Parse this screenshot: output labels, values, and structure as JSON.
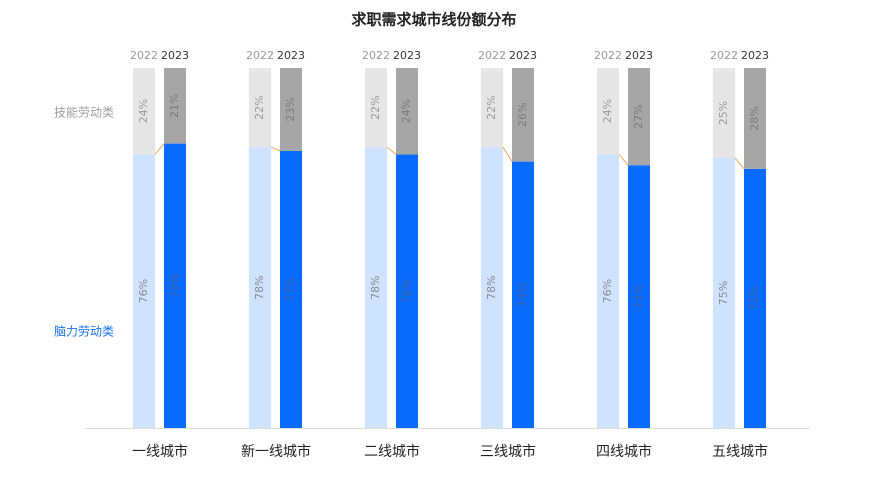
{
  "chart_data": {
    "type": "stacked-bar",
    "title": "求职需求城市线份额分布",
    "categories": [
      "一线城市",
      "新一线城市",
      "二线城市",
      "三线城市",
      "四线城市",
      "五线城市"
    ],
    "subcategories": [
      "2022",
      "2023"
    ],
    "ylim": [
      0,
      100
    ],
    "series": [
      {
        "name": "脑力劳动类",
        "color": "#1a73f0",
        "colors": [
          "#cfe2ff",
          "#0a6cff"
        ],
        "label_colors": [
          "#8a8a8a",
          "#3d5f99"
        ],
        "values": [
          [
            76,
            79
          ],
          [
            78,
            77
          ],
          [
            78,
            76
          ],
          [
            78,
            74
          ],
          [
            76,
            73
          ],
          [
            75,
            72
          ]
        ],
        "value_labels": [
          [
            "76%",
            "79%"
          ],
          [
            "78%",
            "77%"
          ],
          [
            "78%",
            "76%"
          ],
          [
            "78%",
            "74%"
          ],
          [
            "76%",
            "73%"
          ],
          [
            "75%",
            "72%"
          ]
        ]
      },
      {
        "name": "技能劳动类",
        "color": "#9e9e9e",
        "colors": [
          "#e6e6e6",
          "#a6a6a6"
        ],
        "label_colors": [
          "#9a9a9a",
          "#7a7a7a"
        ],
        "values": [
          [
            24,
            21
          ],
          [
            22,
            23
          ],
          [
            22,
            24
          ],
          [
            22,
            26
          ],
          [
            24,
            27
          ],
          [
            25,
            28
          ]
        ],
        "value_labels": [
          [
            "24%",
            "21%"
          ],
          [
            "22%",
            "23%"
          ],
          [
            "22%",
            "24%"
          ],
          [
            "22%",
            "26%"
          ],
          [
            "24%",
            "27%"
          ],
          [
            "25%",
            "28%"
          ]
        ]
      }
    ],
    "connector_color": "#f4a460"
  }
}
